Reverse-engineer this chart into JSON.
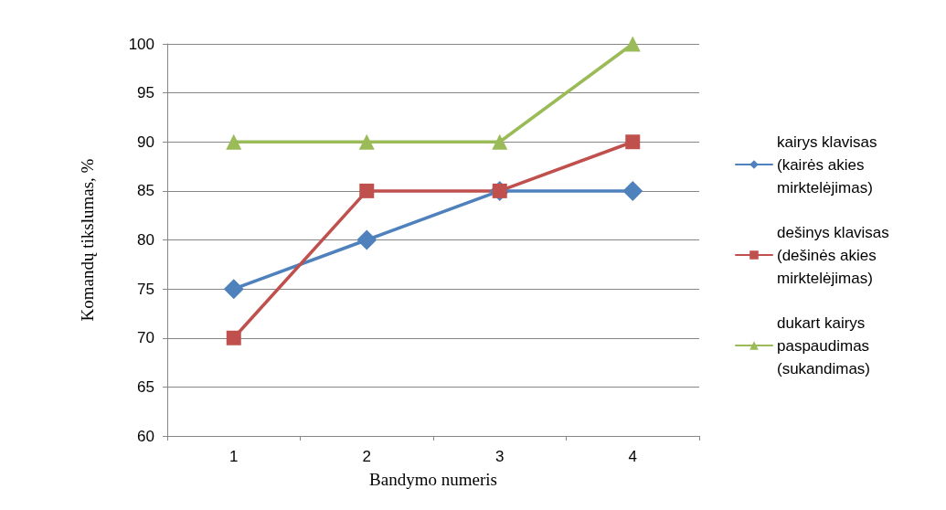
{
  "chart_data": {
    "type": "line",
    "xlabel": "Bandymo numeris",
    "ylabel": "Komandų tikslumas, %",
    "categories": [
      "1",
      "2",
      "3",
      "4"
    ],
    "series": [
      {
        "name": "kairys klavisas (kairės akies mirktelėjimas)",
        "color": "#4f81bd",
        "marker": "diamond",
        "values": [
          75,
          80,
          85,
          85
        ]
      },
      {
        "name": "dešinys klavisas (dešinės akies mirktelėjimas)",
        "color": "#c0504d",
        "marker": "square",
        "values": [
          70,
          85,
          85,
          90
        ]
      },
      {
        "name": "dukart kairys paspaudimas (sukandimas)",
        "color": "#9bbb59",
        "marker": "triangle",
        "values": [
          90,
          90,
          90,
          100
        ]
      }
    ],
    "ylim": [
      60,
      100
    ],
    "yticks": [
      60,
      65,
      70,
      75,
      80,
      85,
      90,
      95,
      100
    ],
    "grid": "y",
    "legend": "right",
    "line_style": "solid"
  }
}
